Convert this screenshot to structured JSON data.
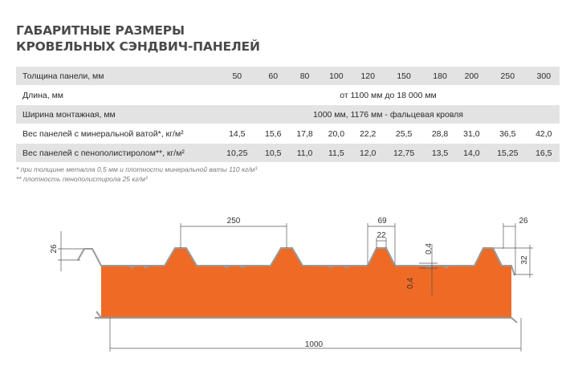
{
  "title": {
    "line1": "ГАБАРИТНЫЕ РАЗМЕРЫ",
    "line2": "КРОВЕЛЬНЫХ СЭНДВИЧ-ПАНЕЛЕЙ"
  },
  "table": {
    "thickness_label": "Толщина панели, мм",
    "thicknesses": [
      "50",
      "60",
      "80",
      "100",
      "120",
      "150",
      "180",
      "200",
      "250",
      "300"
    ],
    "length_label": "Длина, мм",
    "length_value": "от 1100 мм до 18 000 мм",
    "width_label": "Ширина монтажная, мм",
    "width_value": "1000 мм, 1176 мм - фальцевая кровля",
    "weight_mineral_label": "Вес панелей с минеральной ватой*, кг/м²",
    "weight_mineral": [
      "14,5",
      "15,6",
      "17,8",
      "20,0",
      "22,2",
      "25,5",
      "28,8",
      "31,0",
      "36,5",
      "42,0"
    ],
    "weight_foam_label": "Вес панелей с пенополистиролом**, кг/м²",
    "weight_foam": [
      "10,25",
      "10,5",
      "11,0",
      "11,5",
      "12,0",
      "12,75",
      "13,5",
      "14,0",
      "15,25",
      "16,5"
    ]
  },
  "notes": {
    "note1": "* при толщине металла 0,5 мм и плотности минеральной ваты 110 кг/м³",
    "note2": "** плотность пенополистирола 25 кг/м³"
  },
  "drawing": {
    "dim_rib_height": "26",
    "dim_rib_pitch": "250",
    "dim_rib_base": "69",
    "dim_rib_top": "22",
    "dim_sheet_top": "0,4",
    "dim_sheet_bottom": "0,4",
    "dim_edge_rib": "26",
    "dim_edge_height": "32",
    "dim_total_width": "1000",
    "core_color": "#ee6a25"
  }
}
